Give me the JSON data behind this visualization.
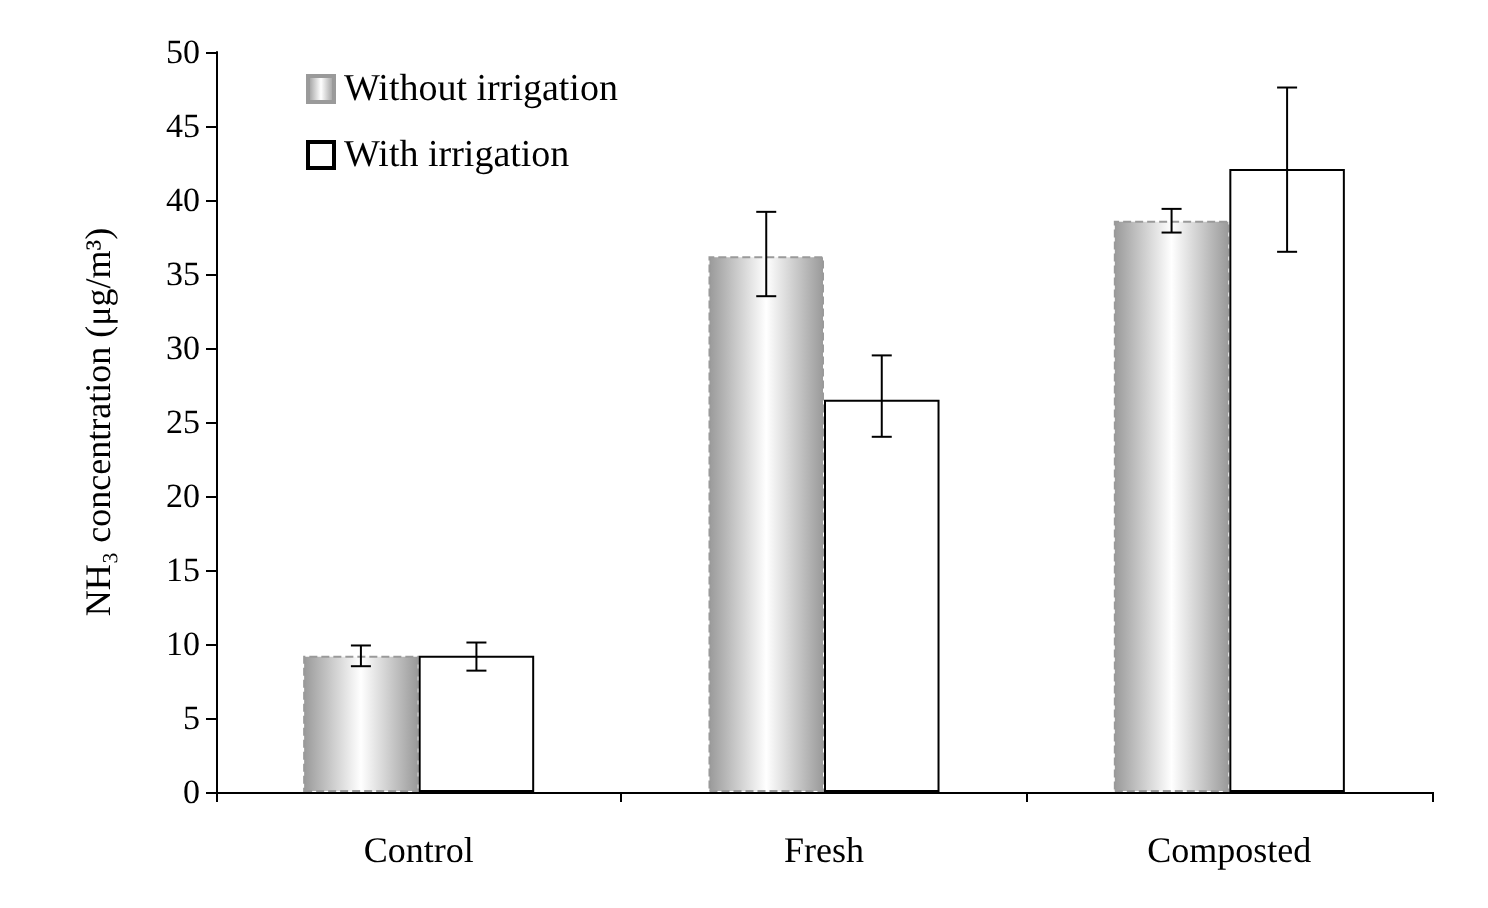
{
  "chart_data": {
    "type": "bar",
    "ylabel": "NH₃ concentration (μg/m³)",
    "categories": [
      "Control",
      "Fresh",
      "Composted"
    ],
    "series": [
      {
        "name": "Without irrigation",
        "color": "#9a9a9a",
        "values": [
          9.2,
          36.2,
          38.6
        ],
        "errors": [
          [
            8.5,
            9.9
          ],
          [
            33.5,
            39.2
          ],
          [
            37.8,
            39.4
          ]
        ],
        "line_style": "dashed"
      },
      {
        "name": "With irrigation",
        "color": "#ffffff",
        "values": [
          9.2,
          26.5,
          42.1
        ],
        "errors": [
          [
            8.2,
            10.1
          ],
          [
            24,
            29.5
          ],
          [
            36.5,
            47.6
          ]
        ],
        "line_style": "solid"
      }
    ],
    "ylim": [
      0,
      50
    ],
    "yticks": [
      0,
      5,
      10,
      15,
      20,
      25,
      30,
      35,
      40,
      45,
      50
    ],
    "grid": false,
    "legend": "top left"
  }
}
